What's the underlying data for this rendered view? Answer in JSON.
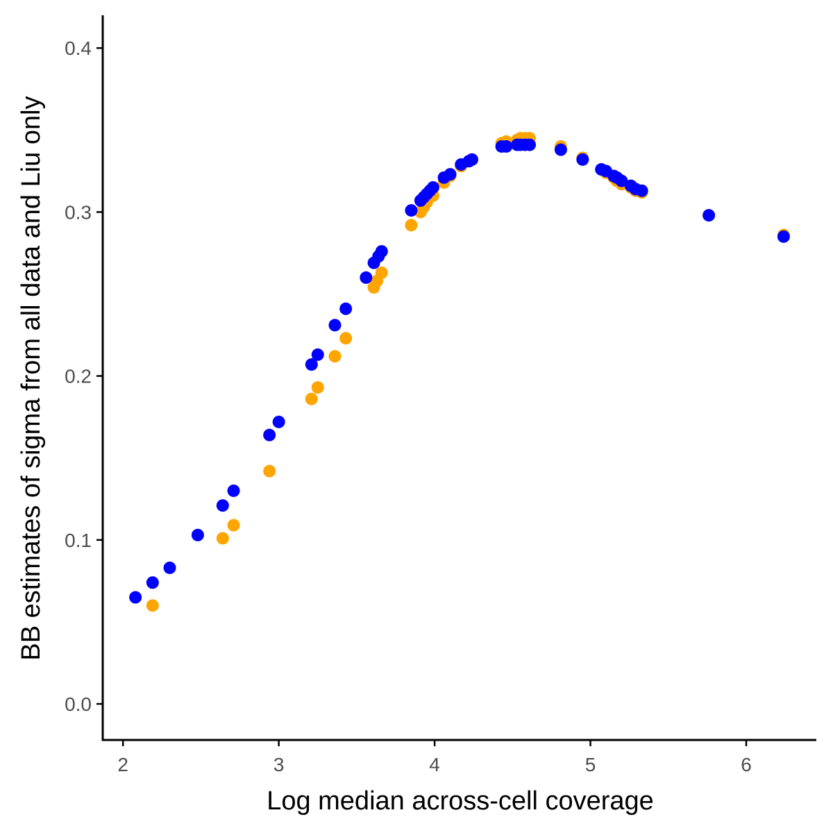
{
  "chart_data": {
    "type": "scatter",
    "title": "",
    "xlabel": "Log median across-cell coverage",
    "ylabel": "BB estimates of sigma from all data and Liu only",
    "xlim": [
      1.87,
      6.45
    ],
    "ylim": [
      -0.022,
      0.42
    ],
    "x_ticks": [
      2,
      3,
      4,
      5,
      6
    ],
    "y_ticks": [
      0.0,
      0.1,
      0.2,
      0.3,
      0.4
    ],
    "x_tick_labels": [
      "2",
      "3",
      "4",
      "5",
      "6"
    ],
    "y_tick_labels": [
      "0.0",
      "0.1",
      "0.2",
      "0.3",
      "0.4"
    ],
    "grid": false,
    "legend": "none",
    "series": [
      {
        "color": "#FFA500",
        "x": [
          2.19,
          2.64,
          2.71,
          2.94,
          3.21,
          3.25,
          3.36,
          3.43,
          3.61,
          3.63,
          3.66,
          3.85,
          3.91,
          3.93,
          3.95,
          3.97,
          3.99,
          4.06,
          4.1,
          4.17,
          4.22,
          4.24,
          4.43,
          4.46,
          4.53,
          4.55,
          4.58,
          4.61,
          4.81,
          4.95,
          5.07,
          5.1,
          5.15,
          5.17,
          5.2,
          5.26,
          5.29,
          5.33,
          5.76,
          6.24
        ],
        "y": [
          0.06,
          0.101,
          0.109,
          0.142,
          0.186,
          0.193,
          0.212,
          0.223,
          0.254,
          0.258,
          0.263,
          0.292,
          0.3,
          0.303,
          0.306,
          0.31,
          0.31,
          0.318,
          0.322,
          0.328,
          0.331,
          0.332,
          0.342,
          0.343,
          0.344,
          0.345,
          0.345,
          0.345,
          0.34,
          0.333,
          0.326,
          0.324,
          0.321,
          0.319,
          0.317,
          0.315,
          0.313,
          0.312,
          0.298,
          0.286
        ]
      },
      {
        "color": "#0000FF",
        "x": [
          2.08,
          2.19,
          2.3,
          2.48,
          2.64,
          2.71,
          2.94,
          3.0,
          3.21,
          3.25,
          3.36,
          3.43,
          3.56,
          3.61,
          3.64,
          3.66,
          3.85,
          3.91,
          3.93,
          3.95,
          3.97,
          3.99,
          4.06,
          4.1,
          4.17,
          4.22,
          4.24,
          4.43,
          4.46,
          4.53,
          4.55,
          4.58,
          4.61,
          4.81,
          4.95,
          5.07,
          5.1,
          5.15,
          5.17,
          5.2,
          5.26,
          5.29,
          5.33,
          5.76,
          6.24
        ],
        "y": [
          0.065,
          0.074,
          0.083,
          0.103,
          0.121,
          0.13,
          0.164,
          0.172,
          0.207,
          0.213,
          0.231,
          0.241,
          0.26,
          0.269,
          0.273,
          0.276,
          0.301,
          0.307,
          0.309,
          0.311,
          0.313,
          0.315,
          0.321,
          0.323,
          0.329,
          0.331,
          0.332,
          0.34,
          0.34,
          0.341,
          0.341,
          0.341,
          0.341,
          0.338,
          0.332,
          0.326,
          0.325,
          0.322,
          0.321,
          0.319,
          0.316,
          0.314,
          0.313,
          0.298,
          0.285
        ]
      }
    ]
  }
}
